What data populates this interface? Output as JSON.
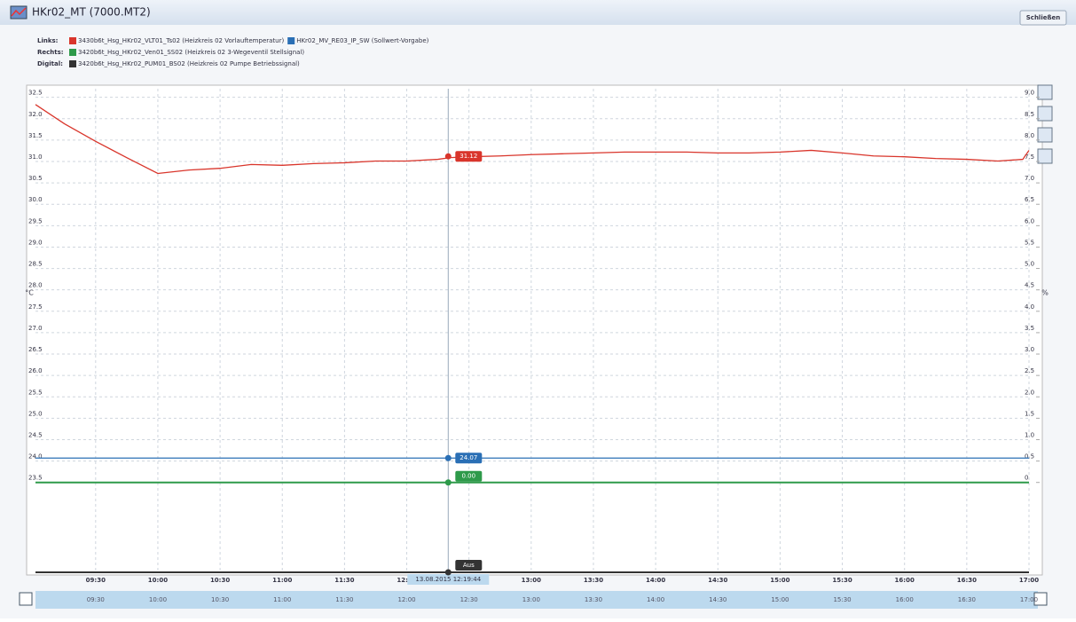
{
  "window": {
    "title": "HKr02_MT (7000.MT2)",
    "close": "Schließen"
  },
  "legend_groups": [
    "Links:",
    "Rechts:",
    "Digital:"
  ],
  "chart_data": {
    "type": "line",
    "ylabel": "°C",
    "y2label": "%",
    "xlim": [
      541,
      1020
    ],
    "xticks": [
      {
        "value": 570,
        "label": "09:30"
      },
      {
        "value": 600,
        "label": "10:00"
      },
      {
        "value": 630,
        "label": "10:30"
      },
      {
        "value": 660,
        "label": "11:00"
      },
      {
        "value": 690,
        "label": "11:30"
      },
      {
        "value": 720,
        "label": "12:00"
      },
      {
        "value": 750,
        "label": "12:30"
      },
      {
        "value": 780,
        "label": "13:00"
      },
      {
        "value": 810,
        "label": "13:30"
      },
      {
        "value": 840,
        "label": "14:00"
      },
      {
        "value": 870,
        "label": "14:30"
      },
      {
        "value": 900,
        "label": "15:00"
      },
      {
        "value": 930,
        "label": "15:30"
      },
      {
        "value": 960,
        "label": "16:00"
      },
      {
        "value": 990,
        "label": "16:30"
      },
      {
        "value": 1020,
        "label": "17:00"
      }
    ],
    "ylim": [
      21.4,
      32.7
    ],
    "yticks": [
      32.5,
      {
        "value": 32,
        "label": "32.0"
      },
      31.5,
      {
        "value": 31,
        "label": "31.0"
      },
      30.5,
      {
        "value": 30,
        "label": "30.0"
      },
      29.5,
      {
        "value": 29,
        "label": "29.0"
      },
      28.5,
      {
        "value": 28,
        "label": "28.0"
      },
      27.5,
      {
        "value": 27,
        "label": "27.0"
      },
      26.5,
      {
        "value": 26,
        "label": "26.0"
      },
      25.5,
      {
        "value": 25,
        "label": "25.0"
      },
      24.5,
      {
        "value": 24,
        "label": "24.0"
      },
      23.5
    ],
    "y2lim": [
      -2.1,
      9.2
    ],
    "y2ticks": [
      {
        "value": 9,
        "label": "9.0"
      },
      8.5,
      {
        "value": 8,
        "label": "8.0"
      },
      7.5,
      {
        "value": 7,
        "label": "7.0"
      },
      6.5,
      {
        "value": 6,
        "label": "6.0"
      },
      5.5,
      {
        "value": 5,
        "label": "5.0"
      },
      4.5,
      {
        "value": 4,
        "label": "4.0"
      },
      3.5,
      {
        "value": 3,
        "label": "3.0"
      },
      2.5,
      {
        "value": 2,
        "label": "2.0"
      },
      1.5,
      {
        "value": 1,
        "label": "1.0"
      },
      0.5,
      0
    ],
    "digital_lim": [
      0,
      1
    ],
    "grid": true,
    "cursor": {
      "x": 740,
      "label": "13.08.2015 12:19:44"
    },
    "series": [
      {
        "name": "3430b6t_Hsg_HKr02_VLT01_Ts02 (Heizkreis 02 Vorlauftemperatur)",
        "group": 0,
        "color": "#d9352b",
        "axis": "y",
        "x": [
          541,
          555,
          570,
          585,
          600,
          615,
          630,
          645,
          660,
          675,
          690,
          705,
          720,
          735,
          741,
          750,
          765,
          780,
          795,
          810,
          825,
          840,
          855,
          870,
          885,
          900,
          915,
          930,
          945,
          960,
          975,
          990,
          1005,
          1017,
          1020
        ],
        "values": [
          32.33,
          31.88,
          31.47,
          31.09,
          30.72,
          30.8,
          30.84,
          30.93,
          30.91,
          30.95,
          30.97,
          31.01,
          31.01,
          31.05,
          31.09,
          31.11,
          31.13,
          31.16,
          31.18,
          31.2,
          31.22,
          31.22,
          31.22,
          31.2,
          31.2,
          31.22,
          31.26,
          31.2,
          31.13,
          31.11,
          31.07,
          31.05,
          31.01,
          31.05,
          31.26
        ],
        "cursor_value": 31.12
      },
      {
        "name": "HKr02_MV_RE03_IP_SW (Sollwert-Vorgabe)",
        "group": 0,
        "color": "#2a6fb5",
        "axis": "y",
        "x": [
          541,
          1020
        ],
        "values": [
          24.07,
          24.07
        ],
        "cursor_value": 24.07
      },
      {
        "name": "3420b6t_Hsg_HKr02_Ven01_SS02 (Heizkreis 02 3-Wegeventil Stellsignal)",
        "group": 1,
        "color": "#2e9a4a",
        "axis": "y2",
        "x": [
          541,
          1020
        ],
        "values": [
          0,
          0
        ],
        "cursor_value": 0,
        "cursor_label": "0.00"
      },
      {
        "name": "3420b6t_Hsg_HKr02_PUM01_BS02 (Heizkreis 02 Pumpe Betriebssignal)",
        "group": 2,
        "color": "#333333",
        "axis": "digital",
        "x": [
          541,
          1020
        ],
        "values": [
          0,
          0
        ],
        "cursor_value": 0,
        "cursor_label": "Aus"
      }
    ]
  }
}
